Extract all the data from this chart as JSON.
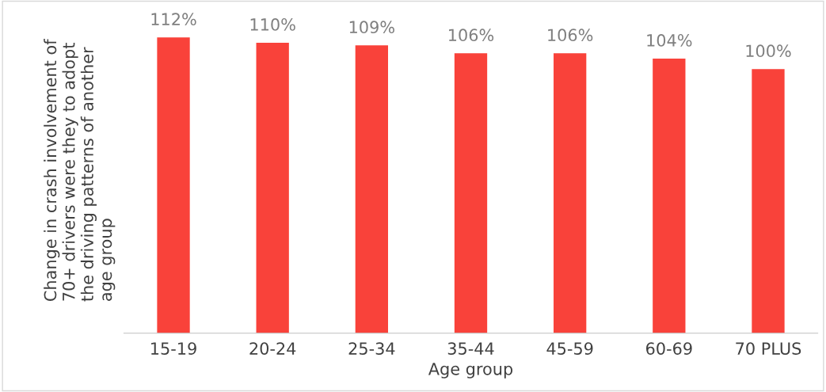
{
  "chart_data": {
    "type": "bar",
    "xlabel": "Age group",
    "ylabel": "Change in crash involvement of\n70+ drivers were they to adopt\nthe driving patterns of another\nage group",
    "categories": [
      "15-19",
      "20-24",
      "25-34",
      "35-44",
      "45-59",
      "60-69",
      "70 PLUS"
    ],
    "values": [
      112,
      110,
      109,
      106,
      106,
      104,
      100
    ],
    "value_labels": [
      "112%",
      "110%",
      "109%",
      "106%",
      "106%",
      "104%",
      "100%"
    ],
    "color": "#f9423a",
    "tick_labels": "x",
    "grid": false
  }
}
